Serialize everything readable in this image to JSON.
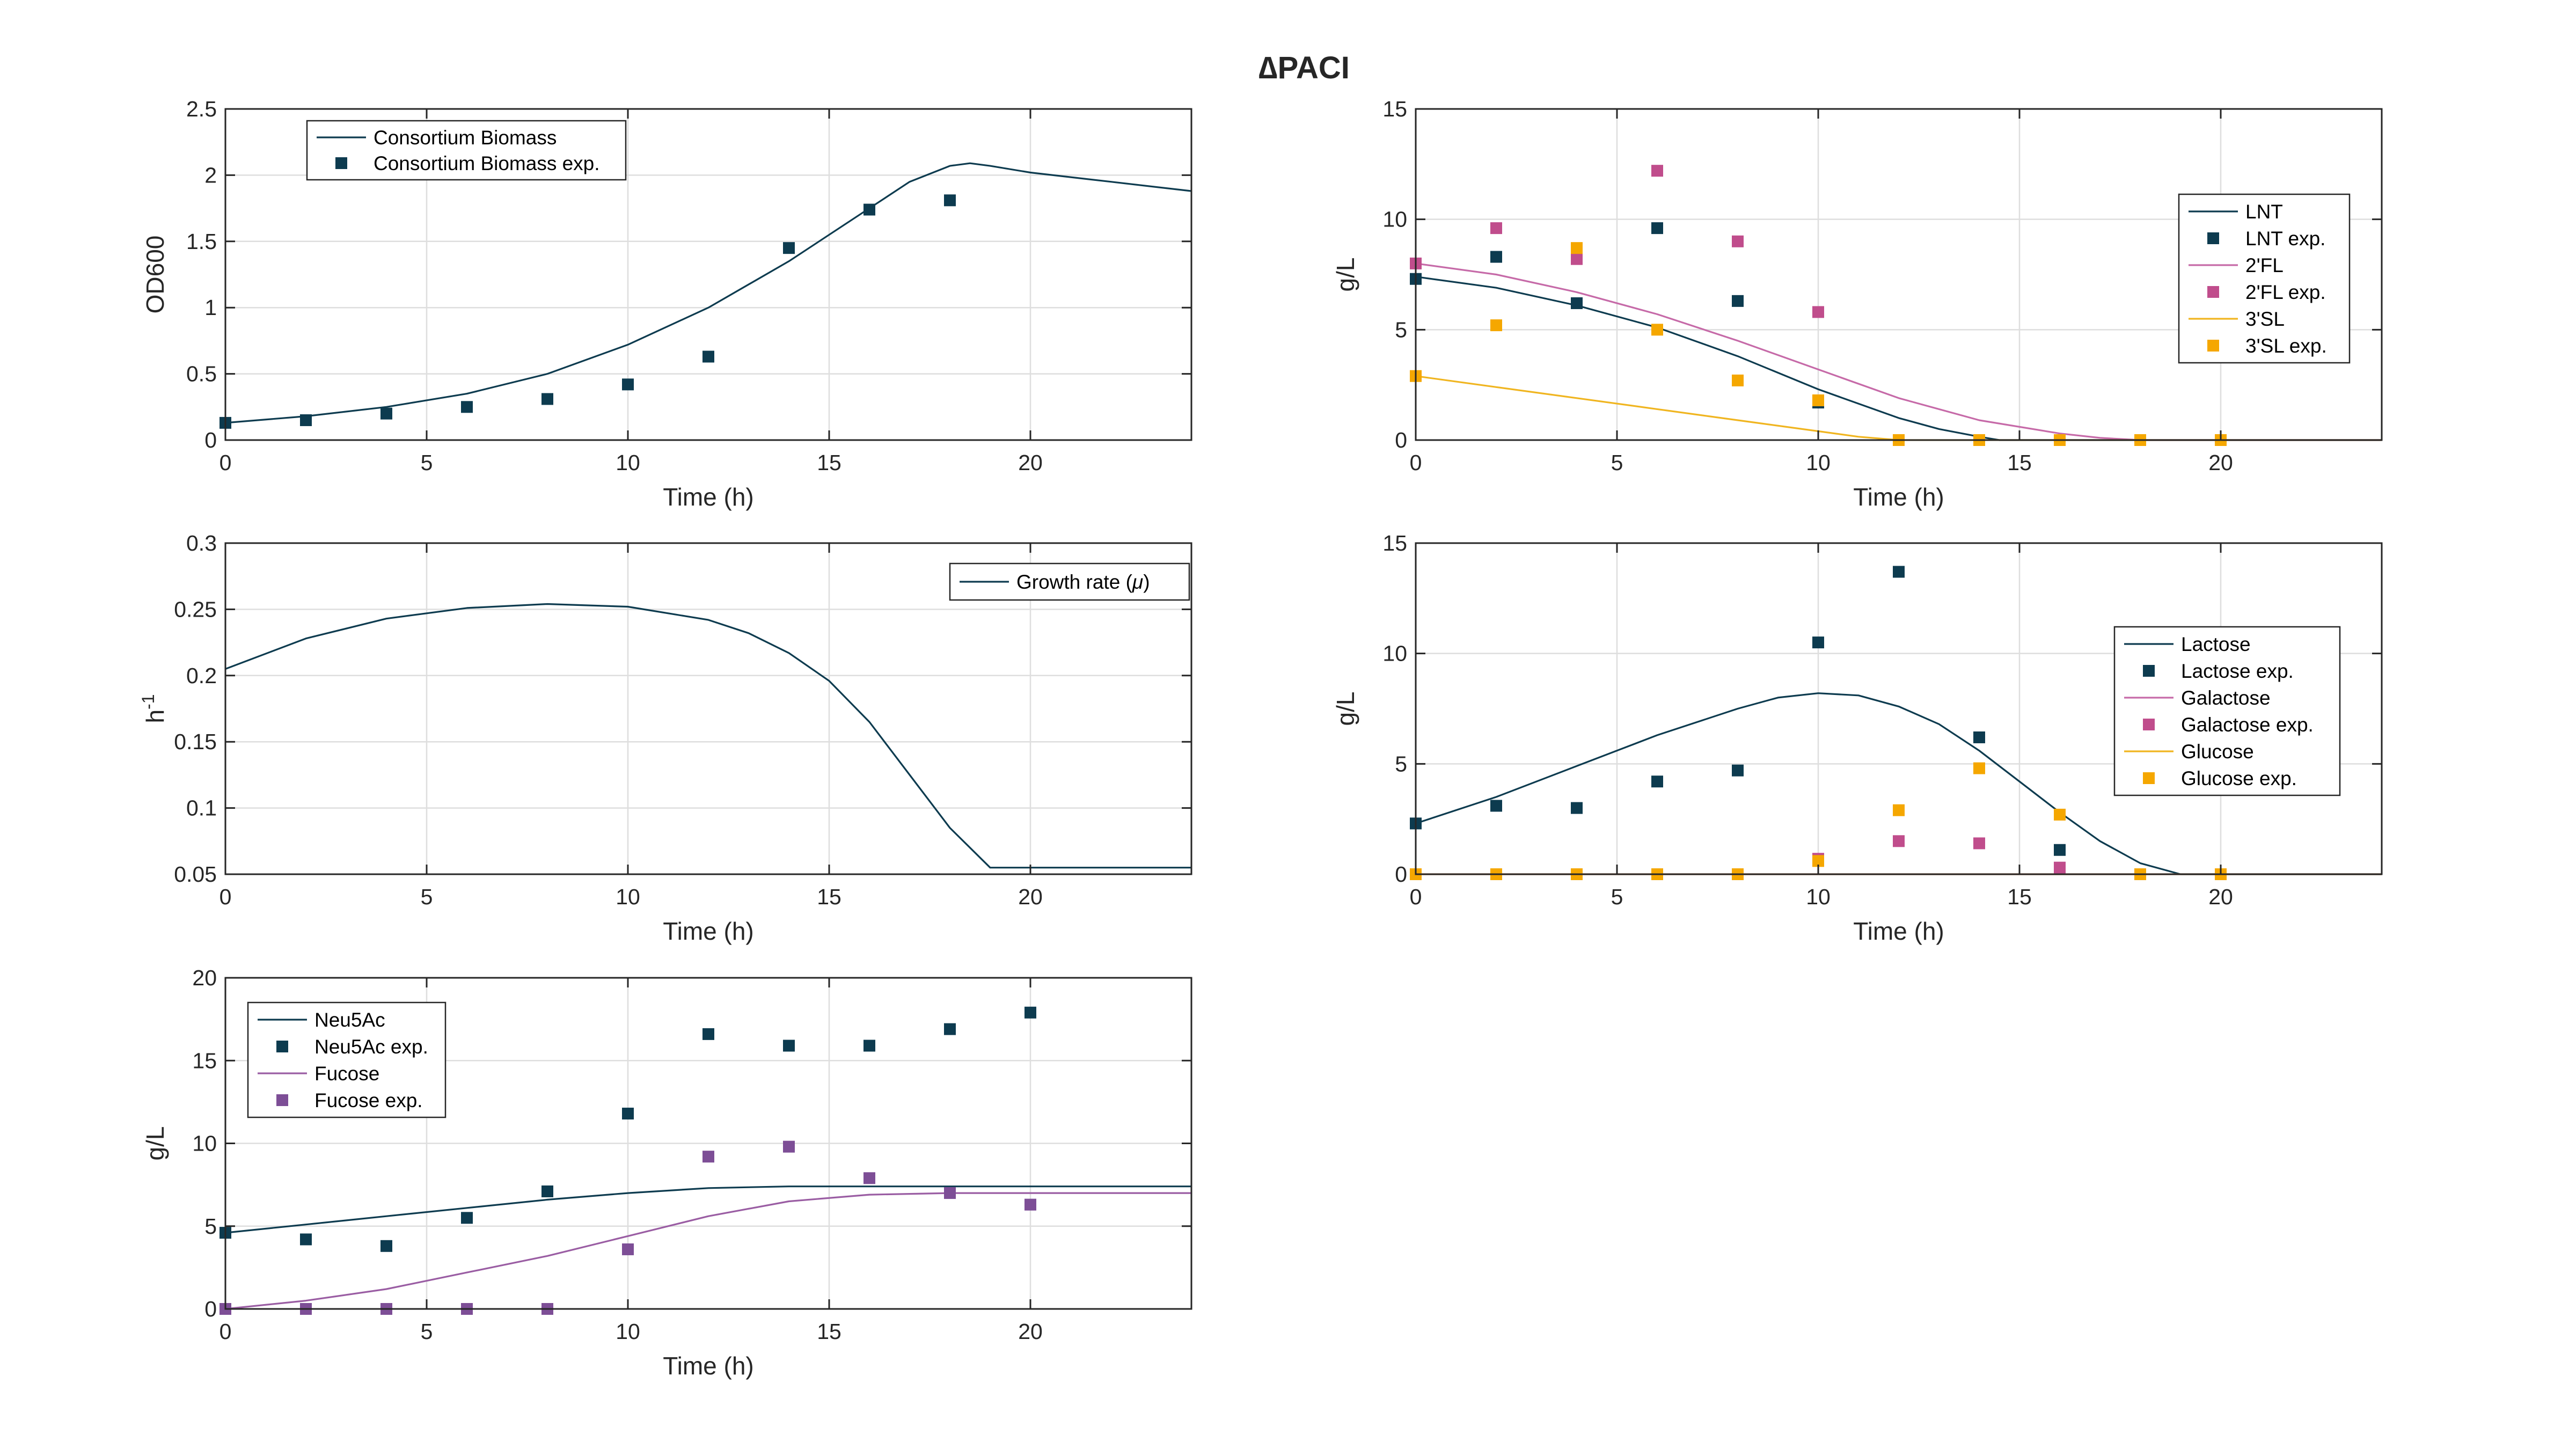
{
  "figure": {
    "title": "∆PACI"
  },
  "colors": {
    "navy": "#0d3b4f",
    "magenta": "#c04d8c",
    "orange": "#f5a700",
    "purple": "#7d4e96",
    "pink_line": "#c66aa8",
    "yellow_line": "#f0b520",
    "purple_line": "#9a5da3"
  },
  "chart_data": [
    {
      "id": "biomass",
      "type": "line",
      "xlabel": "Time (h)",
      "ylabel": "OD600",
      "xlim": [
        0,
        24
      ],
      "ylim": [
        0,
        2.5
      ],
      "xticks": [
        0,
        5,
        10,
        15,
        20
      ],
      "yticks": [
        0,
        0.5,
        1,
        1.5,
        2,
        2.5
      ],
      "yticklabels": [
        "0",
        "0.5",
        "1",
        "1.5",
        "2",
        "2.5"
      ],
      "grid": true,
      "legend_position": "top-left",
      "series": [
        {
          "name": "Consortium Biomass",
          "kind": "line",
          "color": "#0d3b4f",
          "x": [
            0,
            2,
            4,
            6,
            8,
            10,
            12,
            14,
            16,
            17,
            18,
            18.5,
            19,
            20,
            22,
            24
          ],
          "y": [
            0.13,
            0.18,
            0.25,
            0.35,
            0.5,
            0.72,
            1.0,
            1.35,
            1.75,
            1.95,
            2.07,
            2.09,
            2.07,
            2.02,
            1.95,
            1.88
          ]
        },
        {
          "name": "Consortium Biomass exp.",
          "kind": "markers",
          "color": "#0d3b4f",
          "x": [
            0,
            2,
            4,
            6,
            8,
            10,
            12,
            14,
            16,
            18
          ],
          "y": [
            0.13,
            0.15,
            0.2,
            0.25,
            0.31,
            0.42,
            0.63,
            1.45,
            1.74,
            1.81
          ]
        }
      ]
    },
    {
      "id": "hmo",
      "type": "line",
      "xlabel": "Time (h)",
      "ylabel": "g/L",
      "xlim": [
        0,
        24
      ],
      "ylim": [
        0,
        15
      ],
      "xticks": [
        0,
        5,
        10,
        15,
        20
      ],
      "yticks": [
        0,
        5,
        10,
        15
      ],
      "yticklabels": [
        "0",
        "5",
        "10",
        "15"
      ],
      "grid": true,
      "legend_position": "right",
      "series": [
        {
          "name": "LNT",
          "kind": "line",
          "color": "#0d3b4f",
          "x": [
            0,
            2,
            4,
            6,
            8,
            10,
            12,
            13,
            14,
            14.5,
            24
          ],
          "y": [
            7.4,
            6.9,
            6.1,
            5.1,
            3.8,
            2.3,
            1.0,
            0.5,
            0.15,
            0,
            0
          ]
        },
        {
          "name": "LNT exp.",
          "kind": "markers",
          "color": "#0d3b4f",
          "x": [
            0,
            2,
            4,
            6,
            8,
            10,
            12,
            14,
            16,
            18,
            20
          ],
          "y": [
            7.3,
            8.3,
            6.2,
            9.6,
            6.3,
            1.7,
            0,
            0,
            0,
            0,
            0
          ]
        },
        {
          "name": "2'FL",
          "kind": "line",
          "color": "#c66aa8",
          "x": [
            0,
            2,
            4,
            6,
            8,
            10,
            12,
            14,
            16,
            17,
            18,
            24
          ],
          "y": [
            8.0,
            7.5,
            6.7,
            5.7,
            4.5,
            3.2,
            1.9,
            0.9,
            0.3,
            0.1,
            0,
            0
          ]
        },
        {
          "name": "2'FL exp.",
          "kind": "markers",
          "color": "#c04d8c",
          "x": [
            0,
            2,
            4,
            6,
            8,
            10
          ],
          "y": [
            8.0,
            9.6,
            8.2,
            12.2,
            9.0,
            5.8
          ]
        },
        {
          "name": "3'SL",
          "kind": "line",
          "color": "#f0b520",
          "x": [
            0,
            2,
            4,
            6,
            8,
            10,
            11,
            12,
            24
          ],
          "y": [
            2.9,
            2.4,
            1.9,
            1.4,
            0.9,
            0.4,
            0.15,
            0,
            0
          ]
        },
        {
          "name": "3'SL exp.",
          "kind": "markers",
          "color": "#f5a700",
          "x": [
            0,
            2,
            4,
            6,
            8,
            10,
            12,
            14,
            16,
            18,
            20
          ],
          "y": [
            2.9,
            5.2,
            8.7,
            5.0,
            2.7,
            1.8,
            0,
            0,
            0,
            0,
            0
          ]
        }
      ]
    },
    {
      "id": "growth",
      "type": "line",
      "xlabel": "Time (h)",
      "ylabel": "h-1",
      "ylabel_base": "h",
      "ylabel_sup": "-1",
      "xlim": [
        0,
        24
      ],
      "ylim": [
        0.05,
        0.3
      ],
      "xticks": [
        0,
        5,
        10,
        15,
        20
      ],
      "yticks": [
        0.05,
        0.1,
        0.15,
        0.2,
        0.25,
        0.3
      ],
      "yticklabels": [
        "0.05",
        "0.1",
        "0.15",
        "0.2",
        "0.25",
        "0.3"
      ],
      "grid": true,
      "legend_position": "top-right",
      "series": [
        {
          "name": "Growth rate (μ)",
          "name_text": "Growth rate (",
          "name_sym": "μ",
          "name_end": ")",
          "kind": "line",
          "color": "#0d3b4f",
          "x": [
            0,
            2,
            4,
            6,
            8,
            10,
            12,
            13,
            14,
            15,
            16,
            17,
            18,
            19,
            24
          ],
          "y": [
            0.205,
            0.228,
            0.243,
            0.251,
            0.254,
            0.252,
            0.242,
            0.232,
            0.217,
            0.196,
            0.165,
            0.125,
            0.085,
            0.055,
            0.055
          ]
        }
      ]
    },
    {
      "id": "sugars",
      "type": "line",
      "xlabel": "Time (h)",
      "ylabel": "g/L",
      "xlim": [
        0,
        24
      ],
      "ylim": [
        0,
        15
      ],
      "xticks": [
        0,
        5,
        10,
        15,
        20
      ],
      "yticks": [
        0,
        5,
        10,
        15
      ],
      "yticklabels": [
        "0",
        "5",
        "10",
        "15"
      ],
      "grid": true,
      "legend_position": "right",
      "series": [
        {
          "name": "Lactose",
          "kind": "line",
          "color": "#0d3b4f",
          "x": [
            0,
            2,
            4,
            6,
            8,
            9,
            10,
            11,
            12,
            13,
            14,
            15,
            16,
            17,
            18,
            19,
            24
          ],
          "y": [
            2.3,
            3.5,
            4.9,
            6.3,
            7.5,
            8.0,
            8.2,
            8.1,
            7.6,
            6.8,
            5.6,
            4.2,
            2.8,
            1.5,
            0.5,
            0,
            0
          ]
        },
        {
          "name": "Lactose exp.",
          "kind": "markers",
          "color": "#0d3b4f",
          "x": [
            0,
            2,
            4,
            6,
            8,
            10,
            12,
            14,
            16
          ],
          "y": [
            2.3,
            3.1,
            3.0,
            4.2,
            4.7,
            10.5,
            13.7,
            6.2,
            1.1
          ]
        },
        {
          "name": "Galactose",
          "kind": "line",
          "color": "#c66aa8",
          "x": [
            0,
            24
          ],
          "y": [
            0,
            0
          ]
        },
        {
          "name": "Galactose exp.",
          "kind": "markers",
          "color": "#c04d8c",
          "x": [
            10,
            12,
            14,
            16
          ],
          "y": [
            0.7,
            1.5,
            1.4,
            0.3
          ]
        },
        {
          "name": "Glucose",
          "kind": "line",
          "color": "#f0b520",
          "x": [
            0,
            24
          ],
          "y": [
            0,
            0
          ]
        },
        {
          "name": "Glucose exp.",
          "kind": "markers",
          "color": "#f5a700",
          "x": [
            0,
            2,
            4,
            6,
            8,
            10,
            12,
            14,
            16,
            18,
            20
          ],
          "y": [
            0,
            0,
            0,
            0,
            0,
            0.6,
            2.9,
            4.8,
            2.7,
            0,
            0
          ]
        }
      ]
    },
    {
      "id": "neu5ac",
      "type": "line",
      "xlabel": "Time (h)",
      "ylabel": "g/L",
      "xlim": [
        0,
        24
      ],
      "ylim": [
        0,
        20
      ],
      "xticks": [
        0,
        5,
        10,
        15,
        20
      ],
      "yticks": [
        0,
        5,
        10,
        15,
        20
      ],
      "yticklabels": [
        "0",
        "5",
        "10",
        "15",
        "20"
      ],
      "grid": true,
      "legend_position": "top-left",
      "series": [
        {
          "name": "Neu5Ac",
          "kind": "line",
          "color": "#0d3b4f",
          "x": [
            0,
            2,
            4,
            6,
            8,
            10,
            12,
            14,
            16,
            18,
            20,
            24
          ],
          "y": [
            4.6,
            5.1,
            5.6,
            6.1,
            6.6,
            7.0,
            7.3,
            7.4,
            7.4,
            7.4,
            7.4,
            7.4
          ]
        },
        {
          "name": "Neu5Ac exp.",
          "kind": "markers",
          "color": "#0d3b4f",
          "x": [
            0,
            2,
            4,
            6,
            8,
            10,
            12,
            14,
            16,
            18,
            20
          ],
          "y": [
            4.6,
            4.2,
            3.8,
            5.5,
            7.1,
            11.8,
            16.6,
            15.9,
            15.9,
            16.9,
            17.9
          ]
        },
        {
          "name": "Fucose",
          "kind": "line",
          "color": "#9a5da3",
          "x": [
            0,
            2,
            4,
            6,
            8,
            10,
            12,
            14,
            16,
            18,
            20,
            24
          ],
          "y": [
            0,
            0.5,
            1.2,
            2.2,
            3.2,
            4.4,
            5.6,
            6.5,
            6.9,
            7.0,
            7.0,
            7.0
          ]
        },
        {
          "name": "Fucose exp.",
          "kind": "markers",
          "color": "#7d4e96",
          "x": [
            0,
            2,
            4,
            6,
            8,
            10,
            12,
            14,
            16,
            18,
            20
          ],
          "y": [
            0,
            0,
            0,
            0,
            0,
            3.6,
            9.2,
            9.8,
            7.9,
            7.0,
            6.3
          ]
        }
      ]
    }
  ]
}
